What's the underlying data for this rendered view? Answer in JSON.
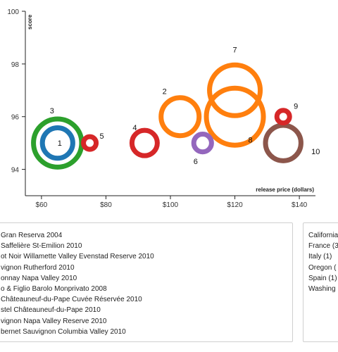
{
  "chart_data": {
    "type": "scatter",
    "title": "",
    "xlabel": "release price (dollars)",
    "ylabel": "score",
    "xlim": [
      55,
      145
    ],
    "ylim": [
      93,
      100
    ],
    "x_ticks": [
      {
        "value": 60,
        "label": "$60"
      },
      {
        "value": 80,
        "label": "$80"
      },
      {
        "value": 100,
        "label": "$100"
      },
      {
        "value": 120,
        "label": "$120"
      },
      {
        "value": 140,
        "label": "$140"
      }
    ],
    "y_ticks": [
      {
        "value": 94,
        "label": "94"
      },
      {
        "value": 96,
        "label": "96"
      },
      {
        "value": 98,
        "label": "98"
      },
      {
        "value": 100,
        "label": "100"
      }
    ],
    "grid": false,
    "points": [
      {
        "id": "1",
        "x": 65,
        "y": 95.0,
        "size": 2.4,
        "color": "#1f77b4"
      },
      {
        "id": "2",
        "x": 103,
        "y": 96.0,
        "size": 3.0,
        "color": "#ff7f0e"
      },
      {
        "id": "3",
        "x": 65,
        "y": 95.0,
        "size": 3.8,
        "color": "#2ca02c"
      },
      {
        "id": "4",
        "x": 92,
        "y": 95.0,
        "size": 2.0,
        "color": "#d62728"
      },
      {
        "id": "5",
        "x": 75,
        "y": 95.0,
        "size": 1.0,
        "color": "#d62728"
      },
      {
        "id": "6",
        "x": 110,
        "y": 95.0,
        "size": 1.4,
        "color": "#9467bd"
      },
      {
        "id": "7",
        "x": 120,
        "y": 97.0,
        "size": 4.0,
        "color": "#ff7f0e"
      },
      {
        "id": "8",
        "x": 120,
        "y": 96.0,
        "size": 4.5,
        "color": "#ff7f0e"
      },
      {
        "id": "9",
        "x": 135,
        "y": 96.0,
        "size": 1.0,
        "color": "#d62728"
      },
      {
        "id": "10",
        "x": 135,
        "y": 95.0,
        "size": 2.8,
        "color": "#8c564b"
      }
    ]
  },
  "wine_list": [
    "Gran Reserva 2004",
    "Saffelière St-Emilion 2010",
    "ot Noir Willamette Valley Evenstad Reserve 2010",
    "vignon Rutherford 2010",
    "onnay Napa Valley 2010",
    "o & Figlio Barolo Monprivato 2008",
    "Châteauneuf-du-Pape Cuvée Réservée 2010",
    "stel Châteauneuf-du-Pape 2010",
    "vignon Napa Valley Reserve 2010",
    "bernet Sauvignon Columbia Valley 2010"
  ],
  "region_list": [
    "California",
    "France (3",
    "Italy (1)",
    "Oregon (",
    "Spain (1)",
    "Washing"
  ]
}
